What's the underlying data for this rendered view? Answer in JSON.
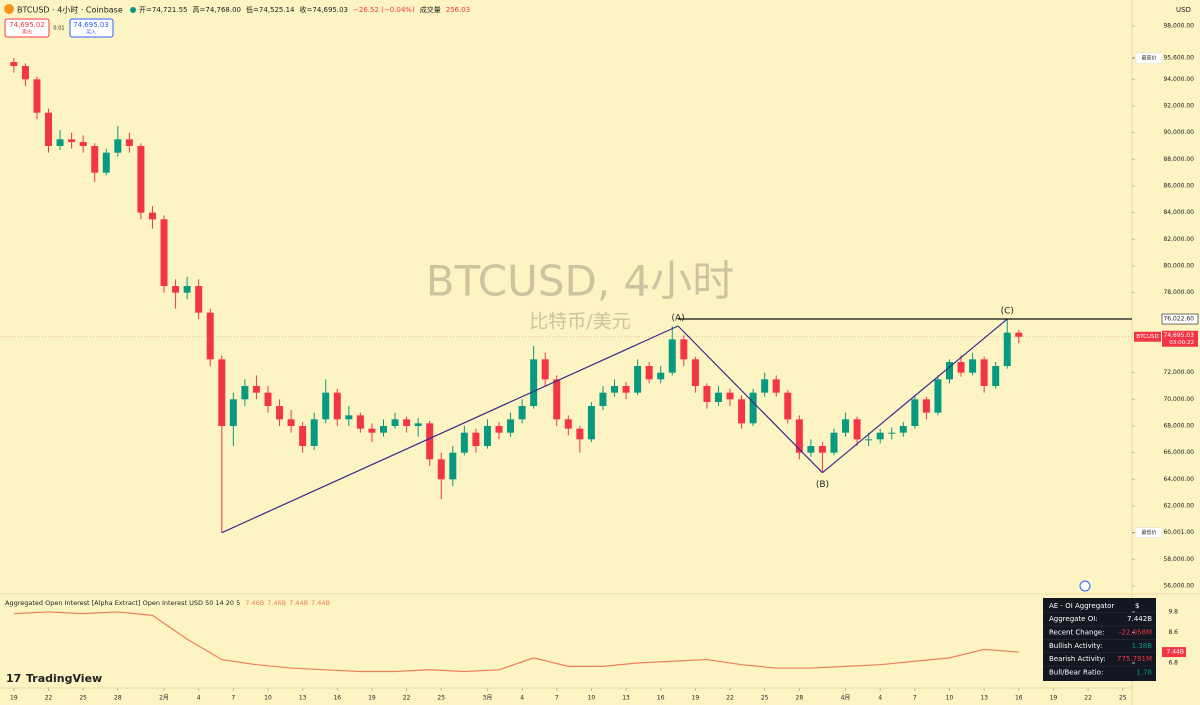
{
  "header": {
    "symbol": "BTCUSD · 4小时 · Coinbase",
    "ohlc": [
      "开=74,721.55",
      "高=74,768.00",
      "低=74,525.14",
      "收=74,695.03"
    ],
    "change": "−26.52 (−0.04%)",
    "volume_label": "成交量",
    "volume": "256.03",
    "sell_price": "74,695.02",
    "sell_label": "卖出",
    "spread": "0.01",
    "buy_price": "74,695.03",
    "buy_label": "买入"
  },
  "currency": "USD",
  "brand": "TradingView",
  "chart_data": [
    {
      "type": "candlestick",
      "title": "BTCUSD, 4小时",
      "subtitle": "比特币/美元",
      "up_color": "#089981",
      "down_color": "#f23645",
      "xlim": [
        -1.2,
        96.8
      ],
      "xticks": [
        {
          "value": 0,
          "label": "19"
        },
        {
          "value": 3,
          "label": "22"
        },
        {
          "value": 6,
          "label": "25"
        },
        {
          "value": 9,
          "label": "28"
        },
        {
          "value": 13,
          "label": "2月"
        },
        {
          "value": 16,
          "label": "4"
        },
        {
          "value": 19,
          "label": "7"
        },
        {
          "value": 22,
          "label": "10"
        },
        {
          "value": 25,
          "label": "13"
        },
        {
          "value": 28,
          "label": "16"
        },
        {
          "value": 31,
          "label": "19"
        },
        {
          "value": 34,
          "label": "22"
        },
        {
          "value": 37,
          "label": "25"
        },
        {
          "value": 41,
          "label": "3月"
        },
        {
          "value": 44,
          "label": "4"
        },
        {
          "value": 47,
          "label": "7"
        },
        {
          "value": 50,
          "label": "10"
        },
        {
          "value": 53,
          "label": "13"
        },
        {
          "value": 56,
          "label": "16"
        },
        {
          "value": 59,
          "label": "19"
        },
        {
          "value": 62,
          "label": "22"
        },
        {
          "value": 65,
          "label": "25"
        },
        {
          "value": 68,
          "label": "28"
        },
        {
          "value": 72,
          "label": "4月"
        },
        {
          "value": 75,
          "label": "4"
        },
        {
          "value": 78,
          "label": "7"
        },
        {
          "value": 81,
          "label": "10"
        },
        {
          "value": 84,
          "label": "13"
        },
        {
          "value": 87,
          "label": "16"
        },
        {
          "value": 90,
          "label": "19"
        },
        {
          "value": 93,
          "label": "22"
        },
        {
          "value": 96,
          "label": "25"
        }
      ],
      "ylim": [
        55700,
        99950
      ],
      "yticks": [
        {
          "value": 98000,
          "label": "98,000.00"
        },
        {
          "value": 94000,
          "label": "94,000.00"
        },
        {
          "value": 92000,
          "label": "92,000.00"
        },
        {
          "value": 90000,
          "label": "90,000.00"
        },
        {
          "value": 88000,
          "label": "88,000.00"
        },
        {
          "value": 86000,
          "label": "86,000.00"
        },
        {
          "value": 84000,
          "label": "84,000.00"
        },
        {
          "value": 82000,
          "label": "82,000.00"
        },
        {
          "value": 80000,
          "label": "80,000.00"
        },
        {
          "value": 78000,
          "label": "78,000.00"
        },
        {
          "value": 72000,
          "label": "72,000.00"
        },
        {
          "value": 70000,
          "label": "70,000.00"
        },
        {
          "value": 68000,
          "label": "68,000.00"
        },
        {
          "value": 66000,
          "label": "66,000.00"
        },
        {
          "value": 64000,
          "label": "64,000.00"
        },
        {
          "value": 62000,
          "label": "62,000.00"
        },
        {
          "value": 58000,
          "label": "58,000.00"
        },
        {
          "value": 56000,
          "label": "56,000.00"
        }
      ],
      "grid": false,
      "candles": [
        [
          95300,
          95600,
          94500,
          95000
        ],
        [
          95000,
          95200,
          93500,
          94000
        ],
        [
          94000,
          94200,
          91000,
          91500
        ],
        [
          91500,
          91800,
          88500,
          89000
        ],
        [
          89000,
          90200,
          88700,
          89500
        ],
        [
          89500,
          90000,
          88800,
          89300
        ],
        [
          89300,
          89800,
          88500,
          89000
        ],
        [
          89000,
          89200,
          86300,
          87000
        ],
        [
          87000,
          88800,
          86800,
          88500
        ],
        [
          88500,
          90500,
          88200,
          89500
        ],
        [
          89500,
          90000,
          88500,
          89000
        ],
        [
          89000,
          89200,
          83500,
          84000
        ],
        [
          84000,
          84500,
          82800,
          83500
        ],
        [
          83500,
          83800,
          78000,
          78500
        ],
        [
          78500,
          79000,
          76800,
          78000
        ],
        [
          78000,
          79200,
          77500,
          78500
        ],
        [
          78500,
          79000,
          76000,
          76500
        ],
        [
          76500,
          76800,
          72500,
          73000
        ],
        [
          73000,
          73300,
          60000,
          68000
        ],
        [
          68000,
          70500,
          66500,
          70000
        ],
        [
          70000,
          71500,
          69500,
          71000
        ],
        [
          71000,
          71800,
          70000,
          70500
        ],
        [
          70500,
          71000,
          69000,
          69500
        ],
        [
          69500,
          70000,
          68000,
          68500
        ],
        [
          68500,
          69200,
          67500,
          68000
        ],
        [
          68000,
          68300,
          66000,
          66500
        ],
        [
          66500,
          69000,
          66200,
          68500
        ],
        [
          68500,
          71500,
          68200,
          70500
        ],
        [
          70500,
          70800,
          68000,
          68500
        ],
        [
          68500,
          69500,
          68000,
          68800
        ],
        [
          68800,
          69000,
          67500,
          67800
        ],
        [
          67800,
          68200,
          66800,
          67500
        ],
        [
          67500,
          68500,
          67200,
          68000
        ],
        [
          68000,
          69000,
          67800,
          68500
        ],
        [
          68500,
          68700,
          67500,
          68000
        ],
        [
          68000,
          68600,
          67200,
          68200
        ],
        [
          68200,
          68400,
          65000,
          65500
        ],
        [
          65500,
          66000,
          62500,
          64000
        ],
        [
          64000,
          66500,
          63500,
          66000
        ],
        [
          66000,
          68000,
          65800,
          67500
        ],
        [
          67500,
          67800,
          66000,
          66500
        ],
        [
          66500,
          68500,
          66300,
          68000
        ],
        [
          68000,
          68300,
          67000,
          67500
        ],
        [
          67500,
          69000,
          67200,
          68500
        ],
        [
          68500,
          70000,
          68200,
          69500
        ],
        [
          69500,
          74000,
          69300,
          73000
        ],
        [
          73000,
          73500,
          71000,
          71500
        ],
        [
          71500,
          71800,
          68000,
          68500
        ],
        [
          68500,
          68800,
          67300,
          67800
        ],
        [
          67800,
          68000,
          66000,
          67000
        ],
        [
          67000,
          69800,
          66800,
          69500
        ],
        [
          69500,
          71000,
          69200,
          70500
        ],
        [
          70500,
          71500,
          70200,
          71000
        ],
        [
          71000,
          71300,
          70000,
          70500
        ],
        [
          70500,
          73000,
          70300,
          72500
        ],
        [
          72500,
          72800,
          71200,
          71500
        ],
        [
          71500,
          72500,
          71200,
          72000
        ],
        [
          72000,
          75500,
          71800,
          74500
        ],
        [
          74500,
          74800,
          72500,
          73000
        ],
        [
          73000,
          73200,
          70500,
          71000
        ],
        [
          71000,
          71200,
          69300,
          69800
        ],
        [
          69800,
          71000,
          69500,
          70500
        ],
        [
          70500,
          70800,
          69500,
          70000
        ],
        [
          70000,
          70300,
          67800,
          68200
        ],
        [
          68200,
          70800,
          68000,
          70500
        ],
        [
          70500,
          72000,
          70200,
          71500
        ],
        [
          71500,
          71800,
          70200,
          70500
        ],
        [
          70500,
          70700,
          68200,
          68500
        ],
        [
          68500,
          68800,
          65500,
          66000
        ],
        [
          66000,
          67000,
          65700,
          66500
        ],
        [
          66500,
          66800,
          64500,
          66000
        ],
        [
          66000,
          67800,
          65800,
          67500
        ],
        [
          67500,
          69000,
          67200,
          68500
        ],
        [
          68500,
          68700,
          66500,
          67000
        ],
        [
          67000,
          67500,
          66500,
          67000
        ],
        [
          67000,
          67800,
          66700,
          67500
        ],
        [
          67500,
          67900,
          67000,
          67500
        ],
        [
          67500,
          68300,
          67200,
          68000
        ],
        [
          68000,
          70300,
          67800,
          70000
        ],
        [
          70000,
          70200,
          68500,
          69000
        ],
        [
          69000,
          71800,
          68800,
          71500
        ],
        [
          71500,
          73000,
          71200,
          72800
        ],
        [
          72800,
          73300,
          71700,
          72000
        ],
        [
          72000,
          73500,
          71800,
          73000
        ],
        [
          73000,
          73200,
          70500,
          71000
        ],
        [
          71000,
          72800,
          70800,
          72500
        ],
        [
          72500,
          76022.6,
          72300,
          75000
        ],
        [
          75000,
          75200,
          74200,
          74695.03
        ]
      ],
      "wave_points": [
        [
          18,
          60000
        ],
        [
          57.5,
          75500
        ],
        [
          70,
          64500
        ],
        [
          86,
          76022.6
        ]
      ],
      "wave_labels": [
        "(A)",
        "(B)",
        "(C)"
      ],
      "level": {
        "value": 76022.6,
        "label": "76,022.60"
      },
      "price_labels": [
        {
          "value": 95600,
          "label": "95,600.00",
          "tag": "最高价"
        },
        {
          "value": 60001,
          "label": "60,001.00",
          "tag": "最低价"
        }
      ],
      "last_price": {
        "value": 74695.03,
        "label": "74,695.03",
        "tag": "BTCUSD",
        "countdown": "03:00:22"
      }
    },
    {
      "type": "line",
      "title": "Aggregated Open Interest [Alpha Extract] Open Interest USD 50 14 20 5",
      "legend_values": [
        "7.46B",
        "7.46B",
        "7.44B",
        "7.44B"
      ],
      "color": "#ee7f5f",
      "x": [
        0,
        3,
        6,
        9,
        12,
        15,
        18,
        21,
        24,
        27,
        30,
        33,
        36,
        39,
        42,
        45,
        48,
        51,
        54,
        57,
        60,
        63,
        66,
        69,
        72,
        75,
        78,
        81,
        84,
        87
      ],
      "values": [
        9.7,
        9.8,
        9.7,
        9.8,
        9.6,
        8.2,
        7.0,
        6.7,
        6.5,
        6.4,
        6.3,
        6.3,
        6.4,
        6.3,
        6.4,
        7.1,
        6.6,
        6.6,
        6.8,
        6.9,
        7.0,
        6.7,
        6.5,
        6.5,
        6.6,
        6.7,
        6.9,
        7.1,
        7.6,
        7.44
      ],
      "ylim": [
        4.33,
        10.62
      ],
      "yticks": [
        9.8,
        8.6,
        6.8
      ],
      "last_label": {
        "value": 7.44,
        "label": "7.44B"
      }
    }
  ],
  "oi_table": {
    "title": "AE - OI Aggregator",
    "icon": "$",
    "rows": [
      [
        "Aggregate OI:",
        "7.442B"
      ],
      [
        "Recent Change:",
        "-22.058M"
      ],
      [
        "Bullish Activity:",
        "1.38B"
      ],
      [
        "Bearish Activity:",
        "775.791M"
      ],
      [
        "Bull/Bear Ratio:",
        "1.78"
      ]
    ]
  }
}
